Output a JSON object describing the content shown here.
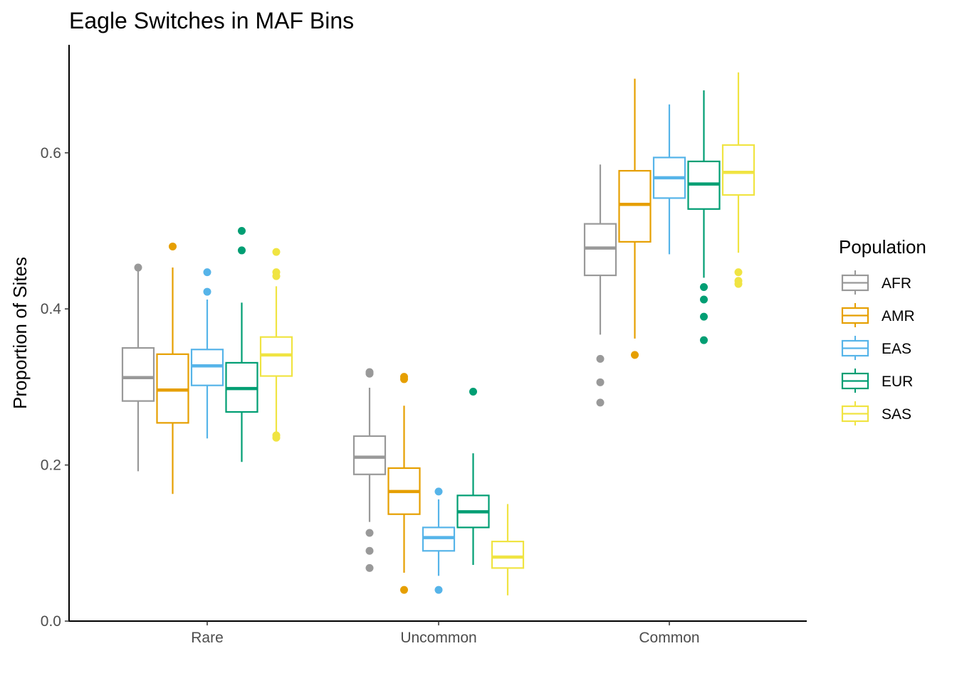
{
  "chart_data": {
    "type": "boxplot",
    "title": "Eagle Switches in MAF Bins",
    "xlabel": "",
    "ylabel": "Proportion of Sites",
    "ylim": [
      0.0,
      0.72
    ],
    "y_ticks": [
      "0.0",
      "0.2",
      "0.4",
      "0.6"
    ],
    "y_tick_values": [
      0.0,
      0.2,
      0.4,
      0.6
    ],
    "categories": [
      "Rare",
      "Uncommon",
      "Common"
    ],
    "legend": {
      "title": "Population",
      "placement": "right"
    },
    "grid": false,
    "series": [
      {
        "name": "AFR",
        "color": "#999999",
        "boxes": [
          {
            "category": "Rare",
            "whisker_low": 0.192,
            "q1": 0.282,
            "median": 0.312,
            "q3": 0.35,
            "whisker_high": 0.452,
            "outliers": [
              0.453
            ]
          },
          {
            "category": "Uncommon",
            "whisker_low": 0.127,
            "q1": 0.188,
            "median": 0.21,
            "q3": 0.237,
            "whisker_high": 0.299,
            "outliers": [
              0.113,
              0.09,
              0.068,
              0.317,
              0.319
            ]
          },
          {
            "category": "Common",
            "whisker_low": 0.367,
            "q1": 0.443,
            "median": 0.478,
            "q3": 0.509,
            "whisker_high": 0.585,
            "outliers": [
              0.336,
              0.306,
              0.28
            ]
          }
        ]
      },
      {
        "name": "AMR",
        "color": "#E69F00",
        "boxes": [
          {
            "category": "Rare",
            "whisker_low": 0.163,
            "q1": 0.254,
            "median": 0.296,
            "q3": 0.342,
            "whisker_high": 0.453,
            "outliers": [
              0.48
            ]
          },
          {
            "category": "Uncommon",
            "whisker_low": 0.062,
            "q1": 0.137,
            "median": 0.166,
            "q3": 0.196,
            "whisker_high": 0.276,
            "outliers": [
              0.04,
              0.31,
              0.313
            ]
          },
          {
            "category": "Common",
            "whisker_low": 0.362,
            "q1": 0.486,
            "median": 0.534,
            "q3": 0.577,
            "whisker_high": 0.695,
            "outliers": [
              0.341
            ]
          }
        ]
      },
      {
        "name": "EAS",
        "color": "#56B4E9",
        "boxes": [
          {
            "category": "Rare",
            "whisker_low": 0.234,
            "q1": 0.302,
            "median": 0.327,
            "q3": 0.348,
            "whisker_high": 0.412,
            "outliers": [
              0.422,
              0.447
            ]
          },
          {
            "category": "Uncommon",
            "whisker_low": 0.058,
            "q1": 0.09,
            "median": 0.107,
            "q3": 0.12,
            "whisker_high": 0.156,
            "outliers": [
              0.166,
              0.04
            ]
          },
          {
            "category": "Common",
            "whisker_low": 0.47,
            "q1": 0.542,
            "median": 0.568,
            "q3": 0.594,
            "whisker_high": 0.662,
            "outliers": []
          }
        ]
      },
      {
        "name": "EUR",
        "color": "#009E73",
        "boxes": [
          {
            "category": "Rare",
            "whisker_low": 0.204,
            "q1": 0.268,
            "median": 0.298,
            "q3": 0.331,
            "whisker_high": 0.408,
            "outliers": [
              0.475,
              0.5
            ]
          },
          {
            "category": "Uncommon",
            "whisker_low": 0.072,
            "q1": 0.12,
            "median": 0.14,
            "q3": 0.161,
            "whisker_high": 0.215,
            "outliers": [
              0.294
            ]
          },
          {
            "category": "Common",
            "whisker_low": 0.44,
            "q1": 0.528,
            "median": 0.56,
            "q3": 0.589,
            "whisker_high": 0.68,
            "outliers": [
              0.428,
              0.412,
              0.39,
              0.36
            ]
          }
        ]
      },
      {
        "name": "SAS",
        "color": "#F0E442",
        "boxes": [
          {
            "category": "Rare",
            "whisker_low": 0.24,
            "q1": 0.314,
            "median": 0.341,
            "q3": 0.364,
            "whisker_high": 0.429,
            "outliers": [
              0.473,
              0.447,
              0.442,
              0.235,
              0.238
            ]
          },
          {
            "category": "Uncommon",
            "whisker_low": 0.033,
            "q1": 0.068,
            "median": 0.082,
            "q3": 0.102,
            "whisker_high": 0.15,
            "outliers": []
          },
          {
            "category": "Common",
            "whisker_low": 0.472,
            "q1": 0.546,
            "median": 0.575,
            "q3": 0.61,
            "whisker_high": 0.703,
            "outliers": [
              0.447,
              0.436,
              0.432
            ]
          }
        ]
      }
    ]
  }
}
